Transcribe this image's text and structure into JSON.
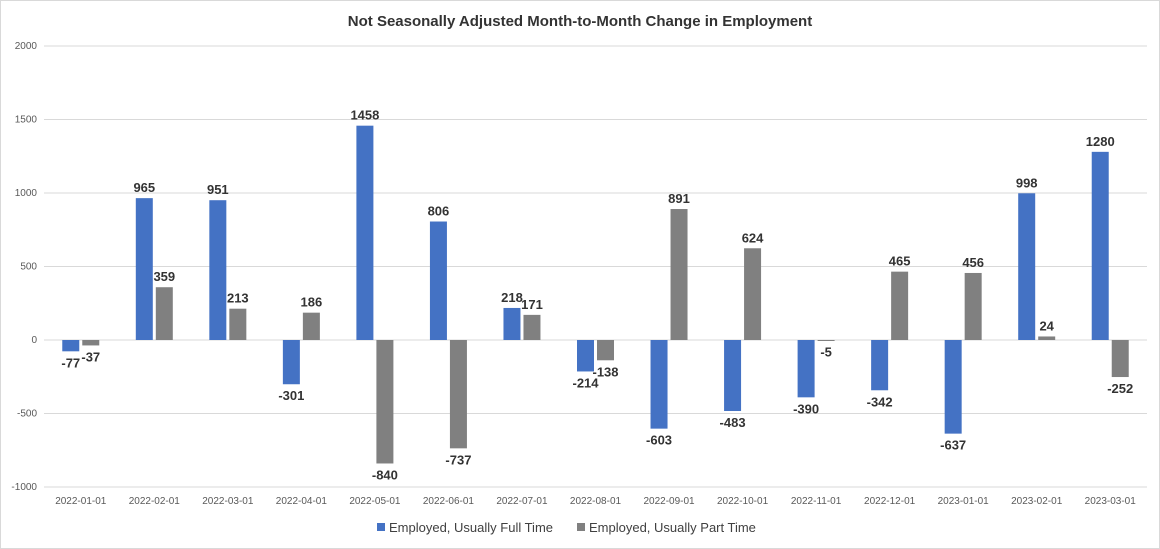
{
  "chart_data": {
    "type": "bar",
    "title": "Not Seasonally Adjusted Month-to-Month Change in Employment",
    "xlabel": "",
    "ylabel": "",
    "ylim": [
      -1000,
      2000
    ],
    "yticks": [
      "2000",
      "1500",
      "1000",
      "500",
      "0",
      "-500",
      "-1000"
    ],
    "ytick_values": [
      2000,
      1500,
      1000,
      500,
      0,
      -500,
      -1000
    ],
    "grid": "horizontal",
    "legend": "bottom",
    "categories": [
      "2022-01-01",
      "2022-02-01",
      "2022-03-01",
      "2022-04-01",
      "2022-05-01",
      "2022-06-01",
      "2022-07-01",
      "2022-08-01",
      "2022-09-01",
      "2022-10-01",
      "2022-11-01",
      "2022-12-01",
      "2023-01-01",
      "2023-02-01",
      "2023-03-01"
    ],
    "series": [
      {
        "name": "Employed, Usually Full Time",
        "color": "#4472C4",
        "values": [
          -77,
          965,
          951,
          -301,
          1458,
          806,
          218,
          -214,
          -603,
          -483,
          -390,
          -342,
          -637,
          998,
          1280
        ],
        "labels": [
          "-77",
          "965",
          "951",
          "-301",
          "1458",
          "806",
          "218",
          "-214",
          "-603",
          "-483",
          "-390",
          "-342",
          "-637",
          "998",
          "1280"
        ]
      },
      {
        "name": "Employed, Usually Part Time",
        "color": "#808080",
        "values": [
          -37,
          359,
          213,
          186,
          -840,
          -737,
          171,
          -138,
          891,
          624,
          -5,
          465,
          456,
          24,
          -252
        ],
        "labels": [
          "-37",
          "359",
          "213",
          "186",
          "-840",
          "-737",
          "171",
          "-138",
          "891",
          "624",
          "-5",
          "465",
          "456",
          "24",
          "-252"
        ]
      }
    ]
  }
}
